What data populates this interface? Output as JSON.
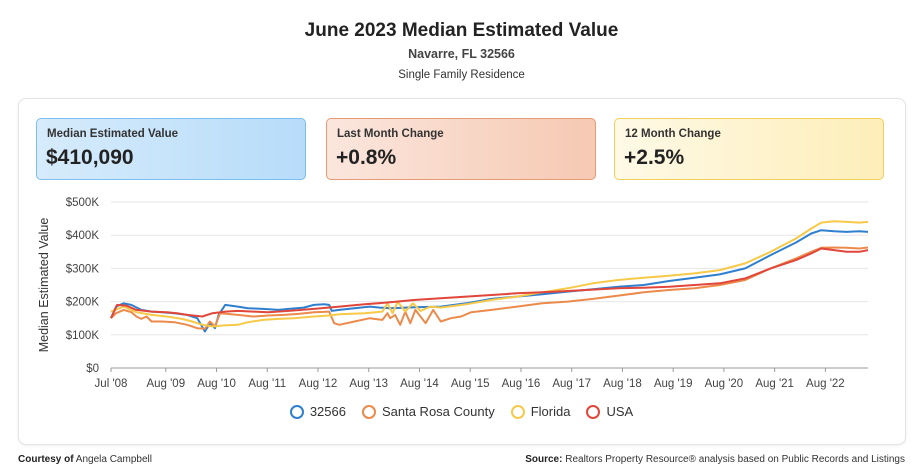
{
  "header": {
    "title": "June 2023 Median Estimated Value",
    "location": "Navarre, FL 32566",
    "property_type": "Single Family Residence"
  },
  "cards": [
    {
      "label": "Median Estimated Value",
      "value": "$410,090",
      "color": "#7cbef0"
    },
    {
      "label": "Last Month Change",
      "value": "+0.8%",
      "color": "#e59a78"
    },
    {
      "label": "12 Month Change",
      "value": "+2.5%",
      "color": "#f1cf5c"
    }
  ],
  "footer": {
    "courtesy_label": "Courtesy of",
    "courtesy_name": "Angela Campbell",
    "source_label": "Source:",
    "source_text": "Realtors Property Resource® analysis based on Public Records and Listings"
  },
  "chart_data": {
    "type": "line",
    "ylabel": "Median Estimated Value",
    "xlabel": "",
    "ylim": [
      0,
      500000
    ],
    "yticks": [
      0,
      100000,
      200000,
      300000,
      400000,
      500000
    ],
    "ytick_labels": [
      "$0",
      "$100K",
      "$200K",
      "$300K",
      "$400K",
      "$500K"
    ],
    "xlim": [
      2008.5,
      2023.42
    ],
    "xticks": [
      2008.5,
      2009.58,
      2010.58,
      2011.58,
      2012.58,
      2013.58,
      2014.58,
      2015.58,
      2016.58,
      2017.58,
      2018.58,
      2019.58,
      2020.58,
      2021.58,
      2022.58
    ],
    "xtick_labels": [
      "Jul '08",
      "Aug '09",
      "Aug '10",
      "Aug '11",
      "Aug '12",
      "Aug '13",
      "Aug '14",
      "Aug '15",
      "Aug '16",
      "Aug '17",
      "Aug '18",
      "Aug '19",
      "Aug '20",
      "Aug '21",
      "Aug '22"
    ],
    "grid": true,
    "legend_position": "bottom",
    "series": [
      {
        "name": "32566",
        "color": "#2f7fcf",
        "points": [
          [
            2008.5,
            150000
          ],
          [
            2008.6,
            185000
          ],
          [
            2008.75,
            195000
          ],
          [
            2008.9,
            190000
          ],
          [
            2009.1,
            175000
          ],
          [
            2009.3,
            170000
          ],
          [
            2009.5,
            168000
          ],
          [
            2009.75,
            165000
          ],
          [
            2010.0,
            160000
          ],
          [
            2010.2,
            150000
          ],
          [
            2010.35,
            110000
          ],
          [
            2010.45,
            135000
          ],
          [
            2010.55,
            120000
          ],
          [
            2010.62,
            160000
          ],
          [
            2010.75,
            190000
          ],
          [
            2011.0,
            185000
          ],
          [
            2011.2,
            180000
          ],
          [
            2011.5,
            178000
          ],
          [
            2011.8,
            175000
          ],
          [
            2012.0,
            178000
          ],
          [
            2012.3,
            182000
          ],
          [
            2012.5,
            190000
          ],
          [
            2012.7,
            192000
          ],
          [
            2012.8,
            190000
          ],
          [
            2012.85,
            172000
          ],
          [
            2013.0,
            175000
          ],
          [
            2013.3,
            180000
          ],
          [
            2013.6,
            185000
          ],
          [
            2013.8,
            182000
          ],
          [
            2014.0,
            180000
          ],
          [
            2014.5,
            183000
          ],
          [
            2015.0,
            185000
          ],
          [
            2015.5,
            195000
          ],
          [
            2016.0,
            208000
          ],
          [
            2016.5,
            215000
          ],
          [
            2017.0,
            222000
          ],
          [
            2017.5,
            230000
          ],
          [
            2018.0,
            237000
          ],
          [
            2018.5,
            245000
          ],
          [
            2019.0,
            250000
          ],
          [
            2019.5,
            262000
          ],
          [
            2020.0,
            272000
          ],
          [
            2020.5,
            282000
          ],
          [
            2021.0,
            300000
          ],
          [
            2021.5,
            340000
          ],
          [
            2022.0,
            378000
          ],
          [
            2022.3,
            405000
          ],
          [
            2022.5,
            415000
          ],
          [
            2022.75,
            412000
          ],
          [
            2023.0,
            410000
          ],
          [
            2023.25,
            412000
          ],
          [
            2023.42,
            410090
          ]
        ]
      },
      {
        "name": "Santa Rosa County",
        "color": "#ec8a4b",
        "points": [
          [
            2008.5,
            150000
          ],
          [
            2008.6,
            165000
          ],
          [
            2008.75,
            175000
          ],
          [
            2008.9,
            168000
          ],
          [
            2009.0,
            155000
          ],
          [
            2009.1,
            148000
          ],
          [
            2009.2,
            155000
          ],
          [
            2009.3,
            140000
          ],
          [
            2009.5,
            140000
          ],
          [
            2009.75,
            138000
          ],
          [
            2010.0,
            130000
          ],
          [
            2010.2,
            120000
          ],
          [
            2010.35,
            118000
          ],
          [
            2010.45,
            140000
          ],
          [
            2010.55,
            125000
          ],
          [
            2010.65,
            165000
          ],
          [
            2011.0,
            160000
          ],
          [
            2011.3,
            155000
          ],
          [
            2011.6,
            158000
          ],
          [
            2011.9,
            160000
          ],
          [
            2012.2,
            163000
          ],
          [
            2012.5,
            168000
          ],
          [
            2012.8,
            170000
          ],
          [
            2012.9,
            135000
          ],
          [
            2013.0,
            130000
          ],
          [
            2013.3,
            140000
          ],
          [
            2013.6,
            150000
          ],
          [
            2013.85,
            145000
          ],
          [
            2013.95,
            165000
          ],
          [
            2014.0,
            150000
          ],
          [
            2014.1,
            160000
          ],
          [
            2014.2,
            130000
          ],
          [
            2014.3,
            170000
          ],
          [
            2014.4,
            135000
          ],
          [
            2014.5,
            175000
          ],
          [
            2014.7,
            135000
          ],
          [
            2014.85,
            175000
          ],
          [
            2015.0,
            140000
          ],
          [
            2015.2,
            150000
          ],
          [
            2015.4,
            155000
          ],
          [
            2015.6,
            168000
          ],
          [
            2016.0,
            175000
          ],
          [
            2016.5,
            185000
          ],
          [
            2017.0,
            195000
          ],
          [
            2017.5,
            200000
          ],
          [
            2018.0,
            208000
          ],
          [
            2018.5,
            218000
          ],
          [
            2019.0,
            228000
          ],
          [
            2019.5,
            235000
          ],
          [
            2020.0,
            240000
          ],
          [
            2020.5,
            250000
          ],
          [
            2021.0,
            265000
          ],
          [
            2021.5,
            300000
          ],
          [
            2022.0,
            330000
          ],
          [
            2022.3,
            350000
          ],
          [
            2022.5,
            362000
          ],
          [
            2022.75,
            363000
          ],
          [
            2023.0,
            362000
          ],
          [
            2023.25,
            360000
          ],
          [
            2023.42,
            363000
          ]
        ]
      },
      {
        "name": "Florida",
        "color": "#f7c948",
        "points": [
          [
            2008.5,
            170000
          ],
          [
            2008.75,
            185000
          ],
          [
            2009.0,
            168000
          ],
          [
            2009.3,
            160000
          ],
          [
            2009.6,
            155000
          ],
          [
            2009.9,
            148000
          ],
          [
            2010.1,
            140000
          ],
          [
            2010.3,
            130000
          ],
          [
            2010.5,
            125000
          ],
          [
            2010.7,
            128000
          ],
          [
            2011.0,
            130000
          ],
          [
            2011.2,
            138000
          ],
          [
            2011.5,
            145000
          ],
          [
            2011.8,
            148000
          ],
          [
            2012.1,
            150000
          ],
          [
            2012.5,
            155000
          ],
          [
            2012.8,
            158000
          ],
          [
            2013.0,
            162000
          ],
          [
            2013.5,
            165000
          ],
          [
            2013.85,
            170000
          ],
          [
            2013.95,
            195000
          ],
          [
            2014.05,
            165000
          ],
          [
            2014.15,
            200000
          ],
          [
            2014.3,
            170000
          ],
          [
            2014.45,
            195000
          ],
          [
            2014.6,
            172000
          ],
          [
            2014.8,
            185000
          ],
          [
            2015.0,
            182000
          ],
          [
            2015.5,
            192000
          ],
          [
            2016.0,
            205000
          ],
          [
            2016.5,
            215000
          ],
          [
            2017.0,
            228000
          ],
          [
            2017.5,
            240000
          ],
          [
            2018.0,
            255000
          ],
          [
            2018.5,
            265000
          ],
          [
            2019.0,
            272000
          ],
          [
            2019.5,
            278000
          ],
          [
            2020.0,
            285000
          ],
          [
            2020.5,
            295000
          ],
          [
            2021.0,
            315000
          ],
          [
            2021.5,
            350000
          ],
          [
            2022.0,
            390000
          ],
          [
            2022.3,
            420000
          ],
          [
            2022.5,
            438000
          ],
          [
            2022.75,
            442000
          ],
          [
            2023.0,
            440000
          ],
          [
            2023.25,
            438000
          ],
          [
            2023.42,
            440000
          ]
        ]
      },
      {
        "name": "USA",
        "color": "#e0463a",
        "points": [
          [
            2008.5,
            150000
          ],
          [
            2008.62,
            190000
          ],
          [
            2008.8,
            188000
          ],
          [
            2009.0,
            175000
          ],
          [
            2009.3,
            170000
          ],
          [
            2009.6,
            168000
          ],
          [
            2009.8,
            165000
          ],
          [
            2010.0,
            160000
          ],
          [
            2010.3,
            155000
          ],
          [
            2010.5,
            165000
          ],
          [
            2010.75,
            170000
          ],
          [
            2011.0,
            172000
          ],
          [
            2011.3,
            170000
          ],
          [
            2011.6,
            168000
          ],
          [
            2012.0,
            172000
          ],
          [
            2012.5,
            178000
          ],
          [
            2013.0,
            185000
          ],
          [
            2013.5,
            192000
          ],
          [
            2014.0,
            198000
          ],
          [
            2014.5,
            205000
          ],
          [
            2015.0,
            210000
          ],
          [
            2015.5,
            215000
          ],
          [
            2016.0,
            220000
          ],
          [
            2016.5,
            225000
          ],
          [
            2017.0,
            228000
          ],
          [
            2017.5,
            232000
          ],
          [
            2018.0,
            236000
          ],
          [
            2018.5,
            240000
          ],
          [
            2019.0,
            242000
          ],
          [
            2019.5,
            245000
          ],
          [
            2020.0,
            250000
          ],
          [
            2020.5,
            255000
          ],
          [
            2021.0,
            270000
          ],
          [
            2021.5,
            300000
          ],
          [
            2022.0,
            325000
          ],
          [
            2022.3,
            345000
          ],
          [
            2022.5,
            360000
          ],
          [
            2022.75,
            355000
          ],
          [
            2023.0,
            350000
          ],
          [
            2023.25,
            350000
          ],
          [
            2023.42,
            355000
          ]
        ]
      }
    ]
  }
}
